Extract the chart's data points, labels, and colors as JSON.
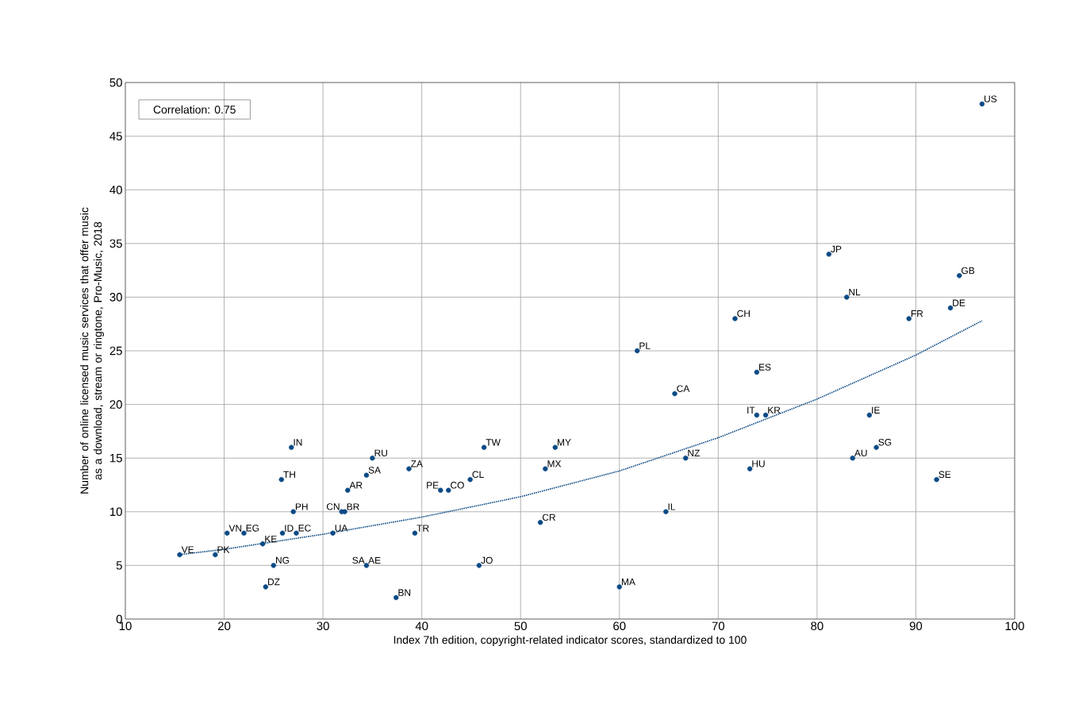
{
  "chart_data": {
    "type": "scatter",
    "xlabel": "Index 7th edition, copyright-related indicator scores, standardized to 100",
    "ylabel": "Number of online licensed music services that offer music as a download, stream or ringtone, Pro-Music, 2018",
    "xlim": [
      10,
      100
    ],
    "ylim": [
      0,
      50
    ],
    "xticks": [
      10,
      20,
      30,
      40,
      50,
      60,
      70,
      80,
      90,
      100
    ],
    "yticks": [
      0,
      5,
      10,
      15,
      20,
      25,
      30,
      35,
      40,
      45,
      50
    ],
    "grid": true,
    "series": [
      {
        "color": "#0b4a85",
        "marker": "circle",
        "x": [
          15.5,
          19.1,
          20.3,
          22.0,
          23.9,
          25.9,
          27.3,
          25.0,
          24.2,
          26.8,
          25.8,
          27.0,
          31.9,
          32.2,
          31.0,
          32.5,
          34.4,
          34.4,
          35.0,
          38.7,
          39.3,
          37.4,
          41.9,
          42.7,
          44.9,
          46.3,
          45.8,
          52.0,
          53.5,
          52.5,
          60.0,
          61.8,
          64.7,
          65.6,
          66.7,
          71.7,
          73.9,
          73.9,
          74.8,
          73.2,
          81.2,
          83.0,
          83.6,
          85.3,
          86.0,
          89.3,
          93.5,
          94.4,
          92.1,
          96.7
        ],
        "values": [
          6,
          6,
          8,
          8,
          7,
          8,
          8,
          5,
          3,
          16,
          13,
          10,
          10,
          10,
          8,
          12,
          13.4,
          5,
          15,
          14,
          8,
          2,
          12,
          12,
          13,
          16,
          5,
          9,
          16,
          14,
          3,
          25,
          10,
          21,
          15,
          28,
          23,
          19,
          19,
          14,
          34,
          30,
          15,
          19,
          16,
          28,
          29,
          32,
          13,
          48
        ]
      },
      {
        "type": "line",
        "color": "#0b4a85",
        "marker": "none",
        "line_style": "dotted",
        "x": [
          15.5,
          20,
          30,
          40,
          50,
          60,
          70,
          80,
          90,
          96.7
        ],
        "values": [
          6.0,
          6.5,
          7.9,
          9.5,
          11.4,
          13.8,
          16.9,
          20.5,
          24.6,
          27.8
        ]
      }
    ],
    "annotations": [
      "Correlation: 0.75",
      {
        "text": "VE",
        "x": 15.5,
        "y": 6
      },
      {
        "text": "PK",
        "x": 19.1,
        "y": 6
      },
      {
        "text": "VN",
        "x": 20.3,
        "y": 8
      },
      {
        "text": "EG",
        "x": 22.0,
        "y": 8
      },
      {
        "text": "KE",
        "x": 23.9,
        "y": 7
      },
      {
        "text": "ID",
        "x": 25.9,
        "y": 8
      },
      {
        "text": "EC",
        "x": 27.3,
        "y": 8
      },
      {
        "text": "NG",
        "x": 25.0,
        "y": 5
      },
      {
        "text": "DZ",
        "x": 24.2,
        "y": 3
      },
      {
        "text": "IN",
        "x": 26.8,
        "y": 16
      },
      {
        "text": "TH",
        "x": 25.8,
        "y": 13
      },
      {
        "text": "PH",
        "x": 27.0,
        "y": 10
      },
      {
        "text": "CN",
        "x": 31.9,
        "y": 10
      },
      {
        "text": "BR",
        "x": 32.2,
        "y": 10
      },
      {
        "text": "UA",
        "x": 31.0,
        "y": 8
      },
      {
        "text": "AR",
        "x": 32.5,
        "y": 12
      },
      {
        "text": "SA",
        "x": 34.4,
        "y": 13.4
      },
      {
        "text": "SA",
        "x": 34.4,
        "y": 5
      },
      {
        "text": "AE",
        "x": 34.4,
        "y": 5
      },
      {
        "text": "RU",
        "x": 35.0,
        "y": 15
      },
      {
        "text": "ZA",
        "x": 38.7,
        "y": 14
      },
      {
        "text": "TR",
        "x": 39.3,
        "y": 8
      },
      {
        "text": "BN",
        "x": 37.4,
        "y": 2
      },
      {
        "text": "PE",
        "x": 41.9,
        "y": 12
      },
      {
        "text": "CO",
        "x": 42.7,
        "y": 12
      },
      {
        "text": "CL",
        "x": 44.9,
        "y": 13
      },
      {
        "text": "TW",
        "x": 46.3,
        "y": 16
      },
      {
        "text": "JO",
        "x": 45.8,
        "y": 5
      },
      {
        "text": "CR",
        "x": 52.0,
        "y": 9
      },
      {
        "text": "MY",
        "x": 53.5,
        "y": 16
      },
      {
        "text": "MX",
        "x": 52.5,
        "y": 14
      },
      {
        "text": "MA",
        "x": 60.0,
        "y": 3
      },
      {
        "text": "PL",
        "x": 61.8,
        "y": 25
      },
      {
        "text": "IL",
        "x": 64.7,
        "y": 10
      },
      {
        "text": "CA",
        "x": 65.6,
        "y": 21
      },
      {
        "text": "NZ",
        "x": 66.7,
        "y": 15
      },
      {
        "text": "CH",
        "x": 71.7,
        "y": 28
      },
      {
        "text": "ES",
        "x": 73.9,
        "y": 23
      },
      {
        "text": "IT",
        "x": 73.9,
        "y": 19
      },
      {
        "text": "KR",
        "x": 74.8,
        "y": 19
      },
      {
        "text": "HU",
        "x": 73.2,
        "y": 14
      },
      {
        "text": "JP",
        "x": 81.2,
        "y": 34
      },
      {
        "text": "NL",
        "x": 83.0,
        "y": 30
      },
      {
        "text": "AU",
        "x": 83.6,
        "y": 15
      },
      {
        "text": "IE",
        "x": 85.3,
        "y": 19
      },
      {
        "text": "SG",
        "x": 86.0,
        "y": 16
      },
      {
        "text": "FR",
        "x": 89.3,
        "y": 28
      },
      {
        "text": "DE",
        "x": 93.5,
        "y": 29
      },
      {
        "text": "GB",
        "x": 94.4,
        "y": 32
      },
      {
        "text": "SE",
        "x": 92.1,
        "y": 13
      },
      {
        "text": "US",
        "x": 96.7,
        "y": 48
      }
    ]
  }
}
